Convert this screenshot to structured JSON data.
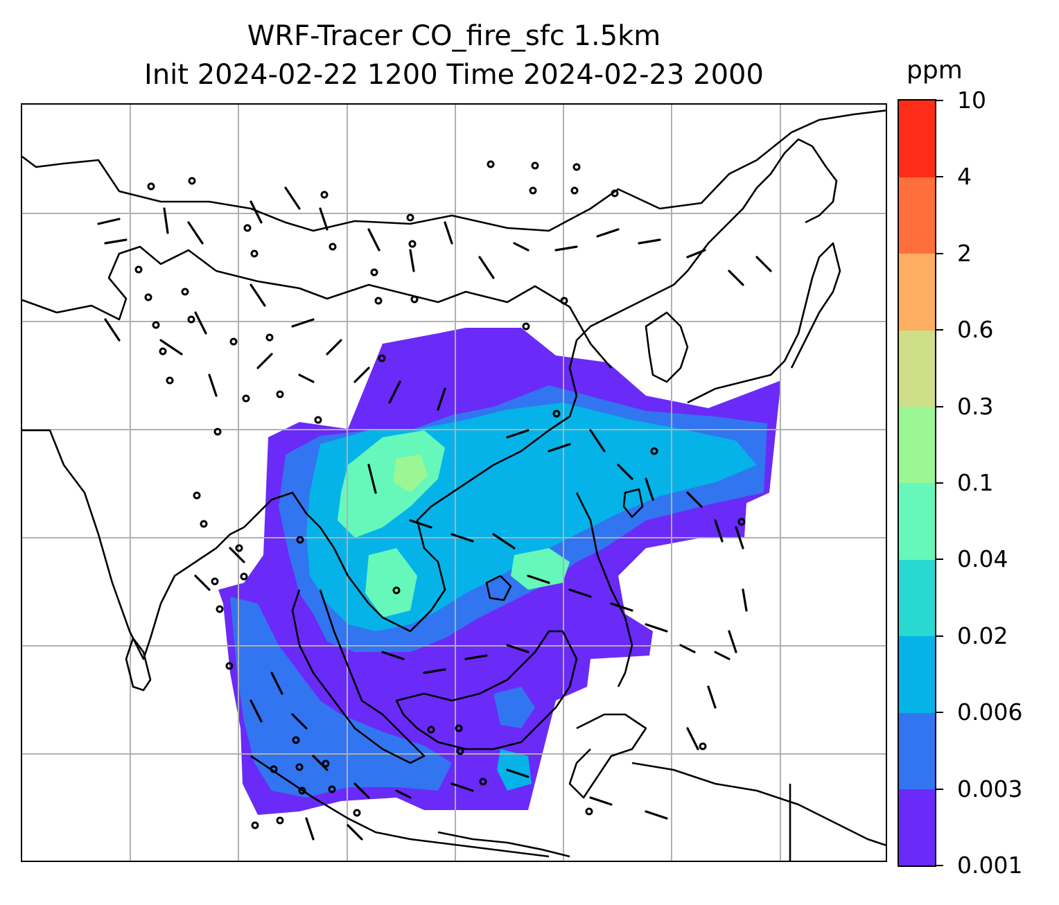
{
  "title": {
    "line1": "WRF-Tracer CO_fire_sfc 1.5km",
    "line2": "Init 2024-02-22 1200 Time 2024-02-23 2000"
  },
  "colorbar": {
    "unit": "ppm",
    "levels": [
      "0.001",
      "0.003",
      "0.006",
      "0.02",
      "0.04",
      "0.1",
      "0.3",
      "0.6",
      "2",
      "4",
      "10"
    ],
    "colors": [
      "#6a2af7",
      "#3275f0",
      "#05b3e8",
      "#2ad8d2",
      "#66f7bb",
      "#9af793",
      "#cfde89",
      "#fdae61",
      "#fe6f3c",
      "#fe2c18"
    ]
  },
  "map": {
    "gridlines": true,
    "plume_colors": {
      "light": "#6a2af7",
      "low": "#3275f0",
      "mid": "#05b3e8",
      "high": "#66f7bb",
      "peak": "#9af793"
    }
  }
}
